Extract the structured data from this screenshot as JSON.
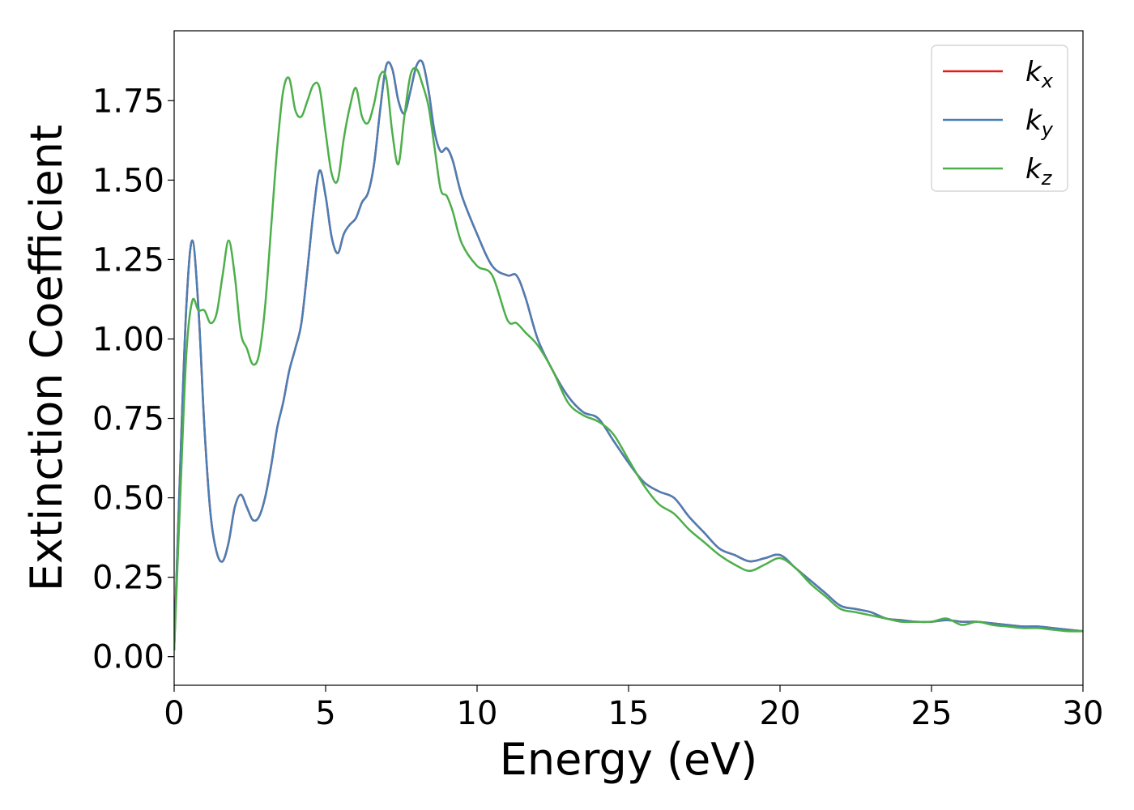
{
  "chart_data": {
    "type": "line",
    "title": "",
    "xlabel": "Energy (eV)",
    "ylabel": "Extinction Coefficient",
    "xlim": [
      0,
      30
    ],
    "ylim": [
      -0.09,
      1.97
    ],
    "xticks": [
      0,
      5,
      10,
      15,
      20,
      25,
      30
    ],
    "xtick_labels": [
      "0",
      "5",
      "10",
      "15",
      "20",
      "25",
      "30"
    ],
    "yticks": [
      0.0,
      0.25,
      0.5,
      0.75,
      1.0,
      1.25,
      1.5,
      1.75
    ],
    "ytick_labels": [
      "0.00",
      "0.25",
      "0.50",
      "0.75",
      "1.00",
      "1.25",
      "1.50",
      "1.75"
    ],
    "grid": false,
    "legend_position": "top-right",
    "series": [
      {
        "name": "k",
        "subscript": "x",
        "color": "#e41a1c",
        "points": [
          [
            0,
            0.02
          ],
          [
            0.2,
            0.6
          ],
          [
            0.4,
            1.1
          ],
          [
            0.6,
            1.31
          ],
          [
            0.8,
            1.1
          ],
          [
            1.0,
            0.72
          ],
          [
            1.2,
            0.45
          ],
          [
            1.4,
            0.33
          ],
          [
            1.6,
            0.3
          ],
          [
            1.8,
            0.36
          ],
          [
            2.0,
            0.47
          ],
          [
            2.2,
            0.51
          ],
          [
            2.4,
            0.47
          ],
          [
            2.6,
            0.43
          ],
          [
            2.8,
            0.44
          ],
          [
            3.0,
            0.5
          ],
          [
            3.2,
            0.6
          ],
          [
            3.4,
            0.72
          ],
          [
            3.6,
            0.8
          ],
          [
            3.8,
            0.9
          ],
          [
            4.0,
            0.97
          ],
          [
            4.2,
            1.05
          ],
          [
            4.4,
            1.22
          ],
          [
            4.6,
            1.4
          ],
          [
            4.8,
            1.53
          ],
          [
            5.0,
            1.45
          ],
          [
            5.2,
            1.32
          ],
          [
            5.4,
            1.27
          ],
          [
            5.6,
            1.33
          ],
          [
            5.8,
            1.36
          ],
          [
            6.0,
            1.38
          ],
          [
            6.2,
            1.43
          ],
          [
            6.4,
            1.46
          ],
          [
            6.6,
            1.55
          ],
          [
            6.8,
            1.72
          ],
          [
            7.0,
            1.86
          ],
          [
            7.2,
            1.85
          ],
          [
            7.4,
            1.75
          ],
          [
            7.6,
            1.71
          ],
          [
            7.8,
            1.78
          ],
          [
            8.0,
            1.86
          ],
          [
            8.2,
            1.87
          ],
          [
            8.4,
            1.78
          ],
          [
            8.6,
            1.65
          ],
          [
            8.8,
            1.59
          ],
          [
            9.0,
            1.6
          ],
          [
            9.2,
            1.56
          ],
          [
            9.5,
            1.45
          ],
          [
            10.0,
            1.33
          ],
          [
            10.5,
            1.23
          ],
          [
            11.0,
            1.2
          ],
          [
            11.3,
            1.2
          ],
          [
            11.6,
            1.13
          ],
          [
            12.0,
            1.0
          ],
          [
            12.5,
            0.9
          ],
          [
            13.0,
            0.82
          ],
          [
            13.5,
            0.77
          ],
          [
            14.0,
            0.75
          ],
          [
            14.5,
            0.68
          ],
          [
            15.0,
            0.61
          ],
          [
            15.5,
            0.55
          ],
          [
            16.0,
            0.52
          ],
          [
            16.5,
            0.5
          ],
          [
            17.0,
            0.44
          ],
          [
            17.5,
            0.39
          ],
          [
            18.0,
            0.34
          ],
          [
            18.5,
            0.32
          ],
          [
            19.0,
            0.3
          ],
          [
            19.5,
            0.31
          ],
          [
            20.0,
            0.32
          ],
          [
            20.5,
            0.28
          ],
          [
            21.0,
            0.24
          ],
          [
            21.5,
            0.2
          ],
          [
            22.0,
            0.16
          ],
          [
            22.5,
            0.15
          ],
          [
            23.0,
            0.14
          ],
          [
            23.5,
            0.12
          ],
          [
            24.0,
            0.115
          ],
          [
            24.5,
            0.11
          ],
          [
            25.0,
            0.11
          ],
          [
            25.5,
            0.115
          ],
          [
            26.0,
            0.11
          ],
          [
            26.5,
            0.11
          ],
          [
            27.0,
            0.105
          ],
          [
            27.5,
            0.1
          ],
          [
            28.0,
            0.095
          ],
          [
            28.5,
            0.095
          ],
          [
            29.0,
            0.09
          ],
          [
            29.5,
            0.085
          ],
          [
            30.0,
            0.08
          ]
        ]
      },
      {
        "name": "k",
        "subscript": "y",
        "color": "#4a7fb5",
        "points": [
          [
            0,
            0.02
          ],
          [
            0.2,
            0.6
          ],
          [
            0.4,
            1.1
          ],
          [
            0.6,
            1.31
          ],
          [
            0.8,
            1.1
          ],
          [
            1.0,
            0.72
          ],
          [
            1.2,
            0.45
          ],
          [
            1.4,
            0.33
          ],
          [
            1.6,
            0.3
          ],
          [
            1.8,
            0.36
          ],
          [
            2.0,
            0.47
          ],
          [
            2.2,
            0.51
          ],
          [
            2.4,
            0.47
          ],
          [
            2.6,
            0.43
          ],
          [
            2.8,
            0.44
          ],
          [
            3.0,
            0.5
          ],
          [
            3.2,
            0.6
          ],
          [
            3.4,
            0.72
          ],
          [
            3.6,
            0.8
          ],
          [
            3.8,
            0.9
          ],
          [
            4.0,
            0.97
          ],
          [
            4.2,
            1.05
          ],
          [
            4.4,
            1.22
          ],
          [
            4.6,
            1.4
          ],
          [
            4.8,
            1.53
          ],
          [
            5.0,
            1.45
          ],
          [
            5.2,
            1.32
          ],
          [
            5.4,
            1.27
          ],
          [
            5.6,
            1.33
          ],
          [
            5.8,
            1.36
          ],
          [
            6.0,
            1.38
          ],
          [
            6.2,
            1.43
          ],
          [
            6.4,
            1.46
          ],
          [
            6.6,
            1.55
          ],
          [
            6.8,
            1.72
          ],
          [
            7.0,
            1.86
          ],
          [
            7.2,
            1.85
          ],
          [
            7.4,
            1.75
          ],
          [
            7.6,
            1.71
          ],
          [
            7.8,
            1.78
          ],
          [
            8.0,
            1.86
          ],
          [
            8.2,
            1.87
          ],
          [
            8.4,
            1.78
          ],
          [
            8.6,
            1.65
          ],
          [
            8.8,
            1.59
          ],
          [
            9.0,
            1.6
          ],
          [
            9.2,
            1.56
          ],
          [
            9.5,
            1.45
          ],
          [
            10.0,
            1.33
          ],
          [
            10.5,
            1.23
          ],
          [
            11.0,
            1.2
          ],
          [
            11.3,
            1.2
          ],
          [
            11.6,
            1.13
          ],
          [
            12.0,
            1.0
          ],
          [
            12.5,
            0.9
          ],
          [
            13.0,
            0.82
          ],
          [
            13.5,
            0.77
          ],
          [
            14.0,
            0.75
          ],
          [
            14.5,
            0.68
          ],
          [
            15.0,
            0.61
          ],
          [
            15.5,
            0.55
          ],
          [
            16.0,
            0.52
          ],
          [
            16.5,
            0.5
          ],
          [
            17.0,
            0.44
          ],
          [
            17.5,
            0.39
          ],
          [
            18.0,
            0.34
          ],
          [
            18.5,
            0.32
          ],
          [
            19.0,
            0.3
          ],
          [
            19.5,
            0.31
          ],
          [
            20.0,
            0.32
          ],
          [
            20.5,
            0.28
          ],
          [
            21.0,
            0.24
          ],
          [
            21.5,
            0.2
          ],
          [
            22.0,
            0.16
          ],
          [
            22.5,
            0.15
          ],
          [
            23.0,
            0.14
          ],
          [
            23.5,
            0.12
          ],
          [
            24.0,
            0.115
          ],
          [
            24.5,
            0.11
          ],
          [
            25.0,
            0.11
          ],
          [
            25.5,
            0.115
          ],
          [
            26.0,
            0.11
          ],
          [
            26.5,
            0.11
          ],
          [
            27.0,
            0.105
          ],
          [
            27.5,
            0.1
          ],
          [
            28.0,
            0.095
          ],
          [
            28.5,
            0.095
          ],
          [
            29.0,
            0.09
          ],
          [
            29.5,
            0.085
          ],
          [
            30.0,
            0.08
          ]
        ]
      },
      {
        "name": "k",
        "subscript": "z",
        "color": "#4daf4a",
        "points": [
          [
            0,
            0.02
          ],
          [
            0.2,
            0.5
          ],
          [
            0.4,
            0.95
          ],
          [
            0.6,
            1.12
          ],
          [
            0.8,
            1.09
          ],
          [
            1.0,
            1.09
          ],
          [
            1.2,
            1.05
          ],
          [
            1.4,
            1.08
          ],
          [
            1.6,
            1.2
          ],
          [
            1.8,
            1.31
          ],
          [
            2.0,
            1.2
          ],
          [
            2.2,
            1.02
          ],
          [
            2.4,
            0.97
          ],
          [
            2.6,
            0.92
          ],
          [
            2.8,
            0.95
          ],
          [
            3.0,
            1.1
          ],
          [
            3.2,
            1.35
          ],
          [
            3.4,
            1.6
          ],
          [
            3.6,
            1.78
          ],
          [
            3.8,
            1.82
          ],
          [
            4.0,
            1.72
          ],
          [
            4.2,
            1.7
          ],
          [
            4.4,
            1.75
          ],
          [
            4.6,
            1.8
          ],
          [
            4.8,
            1.79
          ],
          [
            5.0,
            1.65
          ],
          [
            5.2,
            1.52
          ],
          [
            5.4,
            1.5
          ],
          [
            5.6,
            1.63
          ],
          [
            5.8,
            1.73
          ],
          [
            6.0,
            1.79
          ],
          [
            6.2,
            1.7
          ],
          [
            6.4,
            1.68
          ],
          [
            6.6,
            1.74
          ],
          [
            6.8,
            1.83
          ],
          [
            7.0,
            1.82
          ],
          [
            7.2,
            1.65
          ],
          [
            7.4,
            1.55
          ],
          [
            7.6,
            1.7
          ],
          [
            7.8,
            1.83
          ],
          [
            8.0,
            1.85
          ],
          [
            8.2,
            1.8
          ],
          [
            8.4,
            1.73
          ],
          [
            8.6,
            1.6
          ],
          [
            8.8,
            1.47
          ],
          [
            9.0,
            1.45
          ],
          [
            9.2,
            1.4
          ],
          [
            9.5,
            1.3
          ],
          [
            10.0,
            1.23
          ],
          [
            10.5,
            1.2
          ],
          [
            11.0,
            1.06
          ],
          [
            11.3,
            1.05
          ],
          [
            11.6,
            1.02
          ],
          [
            12.0,
            0.98
          ],
          [
            12.5,
            0.9
          ],
          [
            13.0,
            0.8
          ],
          [
            13.5,
            0.76
          ],
          [
            14.0,
            0.74
          ],
          [
            14.5,
            0.7
          ],
          [
            15.0,
            0.62
          ],
          [
            15.5,
            0.54
          ],
          [
            16.0,
            0.48
          ],
          [
            16.5,
            0.45
          ],
          [
            17.0,
            0.4
          ],
          [
            17.5,
            0.36
          ],
          [
            18.0,
            0.32
          ],
          [
            18.5,
            0.29
          ],
          [
            19.0,
            0.27
          ],
          [
            19.5,
            0.29
          ],
          [
            20.0,
            0.31
          ],
          [
            20.5,
            0.28
          ],
          [
            21.0,
            0.23
          ],
          [
            21.5,
            0.19
          ],
          [
            22.0,
            0.15
          ],
          [
            22.5,
            0.14
          ],
          [
            23.0,
            0.13
          ],
          [
            23.5,
            0.12
          ],
          [
            24.0,
            0.11
          ],
          [
            24.5,
            0.11
          ],
          [
            25.0,
            0.11
          ],
          [
            25.5,
            0.12
          ],
          [
            26.0,
            0.1
          ],
          [
            26.5,
            0.11
          ],
          [
            27.0,
            0.1
          ],
          [
            27.5,
            0.095
          ],
          [
            28.0,
            0.09
          ],
          [
            28.5,
            0.09
          ],
          [
            29.0,
            0.085
          ],
          [
            29.5,
            0.08
          ],
          [
            30.0,
            0.08
          ]
        ]
      }
    ]
  }
}
